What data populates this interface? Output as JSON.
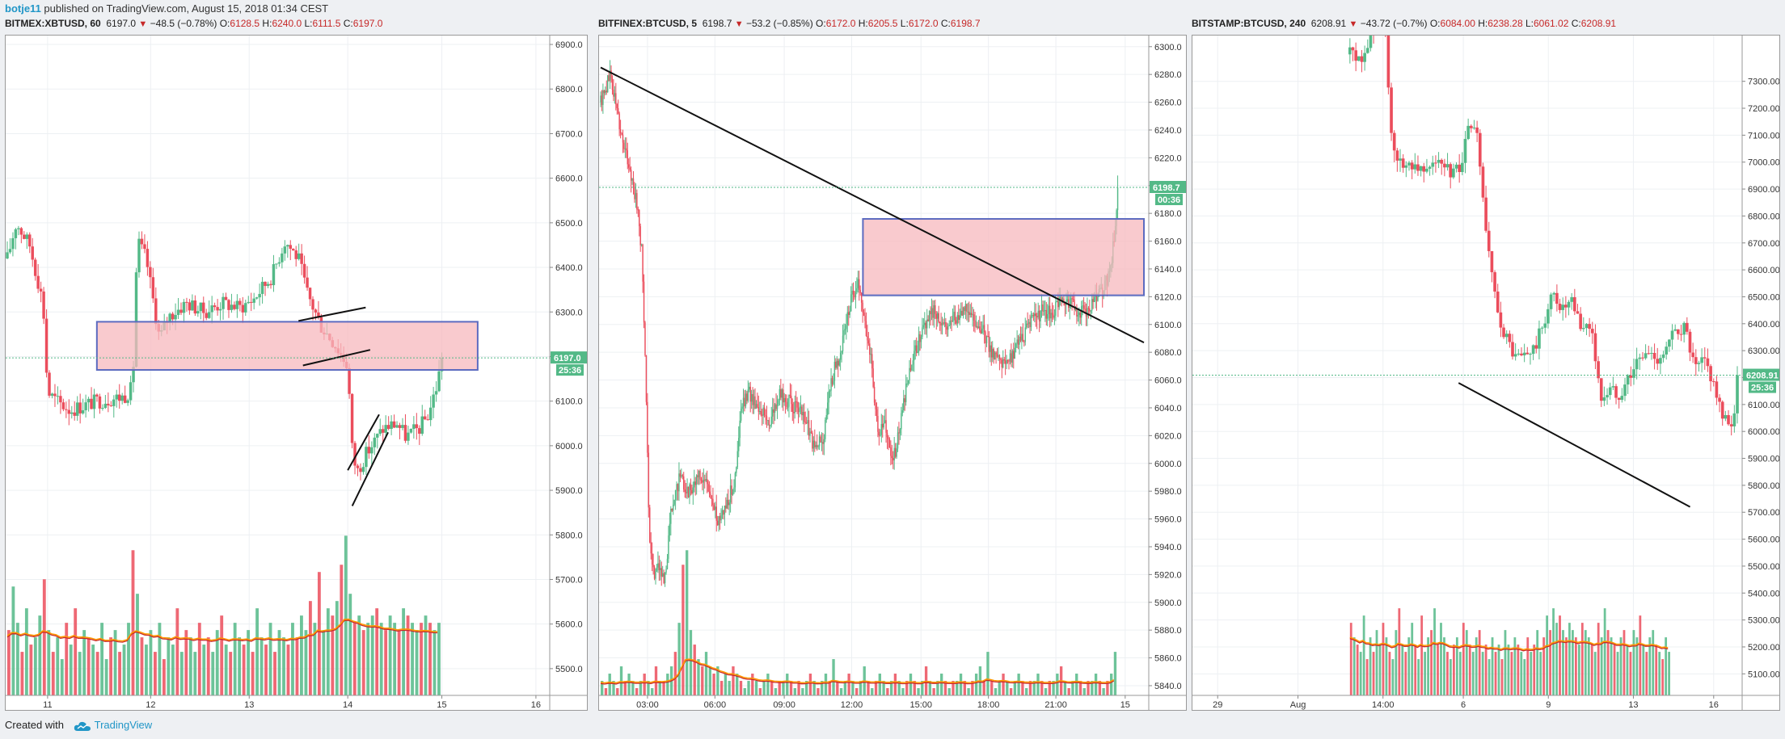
{
  "header": {
    "author": "botje11",
    "published_text": " published on TradingView.com, August 15, 2018 01:34 CEST"
  },
  "footer": {
    "created_with": "Created with",
    "brand": "TradingView"
  },
  "colors": {
    "up": "#53b987",
    "down": "#eb4d5c",
    "zone_fill": "#f7b8bd",
    "zone_border": "#5c6bc0",
    "ma1": "#ff9800",
    "ma2": "#c62828",
    "grid": "#edf0f3"
  },
  "chart_data": [
    {
      "type": "candlestick",
      "symbol": "BITMEX:XBTUSD, 60",
      "last": "6197.0",
      "change": "−48.5 (−0.78%)",
      "O": "6128.5",
      "H": "6240.0",
      "L": "6111.5",
      "C": "6197.0",
      "price_tag": "6197.0",
      "timer_tag": "25:36",
      "ylim": [
        5440,
        6920
      ],
      "y_ticks": [
        5500,
        5600,
        5700,
        5800,
        5900,
        6000,
        6100,
        6200,
        6300,
        6400,
        6500,
        6600,
        6700,
        6800,
        6900
      ],
      "y_decimals": 1,
      "x_range": [
        0,
        120
      ],
      "x_ticks": [
        {
          "x": 9,
          "label": "11"
        },
        {
          "x": 32,
          "label": "12"
        },
        {
          "x": 54,
          "label": "13"
        },
        {
          "x": 76,
          "label": "14"
        },
        {
          "x": 97,
          "label": "15"
        },
        {
          "x": 118,
          "label": "16"
        }
      ],
      "last_candle_x": 97,
      "last_price": 6197,
      "anchors": [
        [
          0,
          6420
        ],
        [
          2,
          6500
        ],
        [
          5,
          6450
        ],
        [
          8,
          6320
        ],
        [
          9,
          6120
        ],
        [
          11,
          6100
        ],
        [
          14,
          6080
        ],
        [
          20,
          6100
        ],
        [
          26,
          6110
        ],
        [
          28,
          6130
        ],
        [
          29,
          6460
        ],
        [
          31,
          6420
        ],
        [
          34,
          6240
        ],
        [
          36,
          6290
        ],
        [
          40,
          6320
        ],
        [
          44,
          6300
        ],
        [
          48,
          6320
        ],
        [
          52,
          6310
        ],
        [
          55,
          6330
        ],
        [
          59,
          6380
        ],
        [
          62,
          6460
        ],
        [
          65,
          6420
        ],
        [
          67,
          6340
        ],
        [
          70,
          6270
        ],
        [
          73,
          6230
        ],
        [
          76,
          6180
        ],
        [
          77,
          5990
        ],
        [
          78,
          5940
        ],
        [
          80,
          5980
        ],
        [
          82,
          6010
        ],
        [
          84,
          6040
        ],
        [
          87,
          6050
        ],
        [
          89,
          6020
        ],
        [
          92,
          6040
        ],
        [
          94,
          6070
        ],
        [
          96,
          6140
        ],
        [
          97,
          6197
        ]
      ],
      "volume": [
        0.45,
        0.75,
        0.5,
        0.3,
        0.6,
        0.35,
        0.4,
        0.55,
        0.8,
        0.45,
        0.3,
        0.4,
        0.25,
        0.5,
        0.35,
        0.6,
        0.3,
        0.45,
        0.4,
        0.35,
        0.3,
        0.5,
        0.25,
        0.4,
        0.45,
        0.3,
        0.35,
        0.5,
        1.0,
        0.7,
        0.4,
        0.35,
        0.45,
        0.3,
        0.5,
        0.25,
        0.4,
        0.35,
        0.6,
        0.3,
        0.45,
        0.4,
        0.3,
        0.5,
        0.35,
        0.4,
        0.3,
        0.45,
        0.55,
        0.35,
        0.3,
        0.5,
        0.4,
        0.35,
        0.45,
        0.3,
        0.6,
        0.4,
        0.35,
        0.5,
        0.3,
        0.45,
        0.4,
        0.35,
        0.5,
        0.4,
        0.55,
        0.45,
        0.65,
        0.5,
        0.85,
        0.45,
        0.6,
        0.55,
        0.65,
        0.9,
        1.1,
        0.7,
        0.5,
        0.55,
        0.45,
        0.5,
        0.55,
        0.6,
        0.5,
        0.45,
        0.55,
        0.5,
        0.45,
        0.6,
        0.55,
        0.5,
        0.45,
        0.5,
        0.55,
        0.5,
        0.45,
        0.5
      ],
      "ma_level": 0.37,
      "zones": [
        {
          "x1": 20,
          "x2": 105,
          "y1": 6170,
          "y2": 6278
        }
      ],
      "lines": [
        [
          65,
          6280,
          80,
          6310
        ],
        [
          66,
          6180,
          81,
          6215
        ],
        [
          76,
          5945,
          83,
          6070
        ],
        [
          77,
          5865,
          85,
          6030
        ]
      ]
    },
    {
      "type": "candlestick",
      "symbol": "BITFINEX:BTCUSD, 5",
      "last": "6198.7",
      "change": "−53.2 (−0.85%)",
      "O": "6172.0",
      "H": "6205.5",
      "L": "6172.0",
      "C": "6198.7",
      "price_tag": "6198.7",
      "timer_tag": "00:36",
      "ylim": [
        5833,
        6308
      ],
      "y_ticks": [
        5840,
        5860,
        5880,
        5900,
        5920,
        5940,
        5960,
        5980,
        6000,
        6020,
        6040,
        6060,
        6080,
        6100,
        6120,
        6140,
        6160,
        6180,
        6200,
        6220,
        6240,
        6260,
        6280,
        6300
      ],
      "y_decimals": 1,
      "x_range": [
        0,
        290
      ],
      "x_ticks": [
        {
          "x": 25,
          "label": "03:00"
        },
        {
          "x": 61,
          "label": "06:00"
        },
        {
          "x": 98,
          "label": "09:00"
        },
        {
          "x": 134,
          "label": "12:00"
        },
        {
          "x": 171,
          "label": "15:00"
        },
        {
          "x": 207,
          "label": "18:00"
        },
        {
          "x": 243,
          "label": "21:00"
        },
        {
          "x": 280,
          "label": "15"
        }
      ],
      "last_candle_x": 276,
      "last_price": 6198.7,
      "anchors": [
        [
          0,
          6260
        ],
        [
          5,
          6280
        ],
        [
          8,
          6260
        ],
        [
          12,
          6230
        ],
        [
          16,
          6210
        ],
        [
          20,
          6180
        ],
        [
          22,
          6150
        ],
        [
          24,
          6070
        ],
        [
          26,
          5940
        ],
        [
          28,
          5920
        ],
        [
          31,
          5930
        ],
        [
          34,
          5910
        ],
        [
          37,
          5960
        ],
        [
          42,
          5990
        ],
        [
          47,
          5980
        ],
        [
          52,
          5990
        ],
        [
          57,
          5985
        ],
        [
          62,
          5960
        ],
        [
          67,
          5970
        ],
        [
          72,
          5990
        ],
        [
          75,
          6040
        ],
        [
          79,
          6050
        ],
        [
          85,
          6040
        ],
        [
          90,
          6030
        ],
        [
          96,
          6050
        ],
        [
          104,
          6040
        ],
        [
          110,
          6030
        ],
        [
          114,
          6010
        ],
        [
          119,
          6020
        ],
        [
          123,
          6060
        ],
        [
          128,
          6080
        ],
        [
          134,
          6120
        ],
        [
          138,
          6130
        ],
        [
          141,
          6100
        ],
        [
          144,
          6080
        ],
        [
          146,
          6050
        ],
        [
          148,
          6020
        ],
        [
          152,
          6030
        ],
        [
          156,
          6000
        ],
        [
          160,
          6030
        ],
        [
          164,
          6060
        ],
        [
          168,
          6080
        ],
        [
          172,
          6100
        ],
        [
          178,
          6110
        ],
        [
          184,
          6100
        ],
        [
          190,
          6105
        ],
        [
          196,
          6110
        ],
        [
          202,
          6100
        ],
        [
          206,
          6090
        ],
        [
          209,
          6080
        ],
        [
          212,
          6080
        ],
        [
          216,
          6070
        ],
        [
          220,
          6078
        ],
        [
          224,
          6088
        ],
        [
          228,
          6098
        ],
        [
          232,
          6104
        ],
        [
          236,
          6110
        ],
        [
          240,
          6108
        ],
        [
          244,
          6114
        ],
        [
          248,
          6118
        ],
        [
          252,
          6114
        ],
        [
          256,
          6108
        ],
        [
          260,
          6112
        ],
        [
          264,
          6118
        ],
        [
          268,
          6124
        ],
        [
          271,
          6134
        ],
        [
          273,
          6150
        ],
        [
          275,
          6170
        ],
        [
          276,
          6198.7
        ]
      ],
      "volume": [
        0.1,
        0.05,
        0.15,
        0.1,
        0.05,
        0.2,
        0.1,
        0.15,
        0.1,
        0.05,
        0.1,
        0.15,
        0.1,
        0.05,
        0.2,
        0.1,
        0.1,
        0.15,
        0.2,
        0.3,
        0.5,
        0.9,
        1.0,
        0.45,
        0.35,
        0.25,
        0.2,
        0.3,
        0.2,
        0.15,
        0.2,
        0.1,
        0.15,
        0.1,
        0.2,
        0.15,
        0.1,
        0.05,
        0.1,
        0.15,
        0.1,
        0.05,
        0.1,
        0.15,
        0.1,
        0.05,
        0.1,
        0.1,
        0.15,
        0.1,
        0.05,
        0.1,
        0.05,
        0.1,
        0.15,
        0.1,
        0.05,
        0.1,
        0.15,
        0.1,
        0.25,
        0.1,
        0.05,
        0.1,
        0.15,
        0.1,
        0.05,
        0.1,
        0.2,
        0.1,
        0.05,
        0.1,
        0.15,
        0.1,
        0.05,
        0.1,
        0.15,
        0.1,
        0.05,
        0.1,
        0.15,
        0.1,
        0.05,
        0.1,
        0.2,
        0.1,
        0.05,
        0.1,
        0.15,
        0.1,
        0.05,
        0.1,
        0.1,
        0.15,
        0.1,
        0.05,
        0.1,
        0.15,
        0.2,
        0.1,
        0.3,
        0.1,
        0.05,
        0.1,
        0.15,
        0.1,
        0.05,
        0.1,
        0.15,
        0.1,
        0.05,
        0.1,
        0.1,
        0.15,
        0.1,
        0.05,
        0.1,
        0.1,
        0.15,
        0.2,
        0.1,
        0.05,
        0.1,
        0.15,
        0.1,
        0.05,
        0.1,
        0.1,
        0.15,
        0.1,
        0.05,
        0.1,
        0.15,
        0.3
      ],
      "ma_level": 0.08,
      "zones": [
        {
          "x1": 140,
          "x2": 290,
          "y1": 6121,
          "y2": 6176
        }
      ],
      "lines": [
        [
          0,
          6285,
          290,
          6087
        ]
      ]
    },
    {
      "type": "candlestick",
      "symbol": "BITSTAMP:BTCUSD, 240",
      "last": "6208.91",
      "change": "−43.72 (−0.7%)",
      "O": "6084.00",
      "H": "6238.28",
      "L": "6061.02",
      "C": "6208.91",
      "price_tag": "6208.91",
      "timer_tag": "25:36",
      "ylim": [
        5020,
        7470
      ],
      "y_ticks": [
        5100,
        5200,
        5300,
        5400,
        5500,
        5600,
        5700,
        5800,
        5900,
        6000,
        6100,
        6200,
        6300,
        6400,
        6500,
        6600,
        6700,
        6800,
        6900,
        7000,
        7100,
        7200,
        7300
      ],
      "y_decimals": 2,
      "x_range": [
        0,
        115
      ],
      "x_ticks": [
        {
          "x": 5,
          "label": "29"
        },
        {
          "x": 22,
          "label": "Aug"
        },
        {
          "x": 40,
          "label": "14:00"
        },
        {
          "x": 57,
          "label": "6"
        },
        {
          "x": 75,
          "label": "9"
        },
        {
          "x": 93,
          "label": "13"
        },
        {
          "x": 110,
          "label": "16"
        }
      ],
      "last_candle_x": 101,
      "last_price": 6208.91,
      "anchors": [
        [
          33,
          7400
        ],
        [
          36,
          7380
        ],
        [
          38,
          7500
        ],
        [
          40,
          7600
        ],
        [
          42,
          7020
        ],
        [
          44,
          6990
        ],
        [
          46,
          7000
        ],
        [
          48,
          6980
        ],
        [
          50,
          7010
        ],
        [
          52,
          6990
        ],
        [
          54,
          6960
        ],
        [
          56,
          6970
        ],
        [
          58,
          7110
        ],
        [
          60,
          7100
        ],
        [
          62,
          6700
        ],
        [
          64,
          6450
        ],
        [
          66,
          6350
        ],
        [
          68,
          6270
        ],
        [
          70,
          6280
        ],
        [
          72,
          6300
        ],
        [
          74,
          6400
        ],
        [
          76,
          6510
        ],
        [
          78,
          6450
        ],
        [
          80,
          6470
        ],
        [
          82,
          6380
        ],
        [
          84,
          6400
        ],
        [
          86,
          6120
        ],
        [
          88,
          6150
        ],
        [
          90,
          6140
        ],
        [
          92,
          6200
        ],
        [
          94,
          6260
        ],
        [
          96,
          6290
        ],
        [
          98,
          6270
        ],
        [
          100,
          6300
        ],
        [
          102,
          6380
        ],
        [
          104,
          6380
        ],
        [
          106,
          6220
        ],
        [
          108,
          6260
        ],
        [
          110,
          6180
        ],
        [
          112,
          6030
        ],
        [
          114,
          6040
        ],
        [
          115,
          6060
        ]
      ],
      "volume": [
        0.5,
        0.4,
        0.35,
        0.3,
        0.55,
        0.25,
        0.4,
        0.3,
        0.45,
        0.35,
        0.5,
        0.4,
        0.3,
        0.25,
        0.45,
        0.6,
        0.35,
        0.3,
        0.4,
        0.5,
        0.35,
        0.25,
        0.55,
        0.3,
        0.4,
        0.45,
        0.6,
        0.35,
        0.5,
        0.4,
        0.3,
        0.25,
        0.35,
        0.4,
        0.3,
        0.5,
        0.45,
        0.35,
        0.3,
        0.4,
        0.45,
        0.3,
        0.35,
        0.25,
        0.4,
        0.3,
        0.35,
        0.25,
        0.45,
        0.35,
        0.3,
        0.4,
        0.35,
        0.3,
        0.25,
        0.4,
        0.3,
        0.35,
        0.45,
        0.3,
        0.4,
        0.55,
        0.45,
        0.6,
        0.5,
        0.55,
        0.45,
        0.4,
        0.5,
        0.45,
        0.4,
        0.35,
        0.5,
        0.45,
        0.4,
        0.35,
        0.3,
        0.5,
        0.4,
        0.6,
        0.45,
        0.4,
        0.35,
        0.3,
        0.4,
        0.45,
        0.35,
        0.3,
        0.45,
        0.4,
        0.55,
        0.35,
        0.3,
        0.4,
        0.45,
        0.35,
        0.3,
        0.25,
        0.4,
        0.3
      ],
      "ma_level": 0.3,
      "zones": [],
      "lines": [
        [
          56,
          6180,
          105,
          5720
        ]
      ]
    }
  ]
}
